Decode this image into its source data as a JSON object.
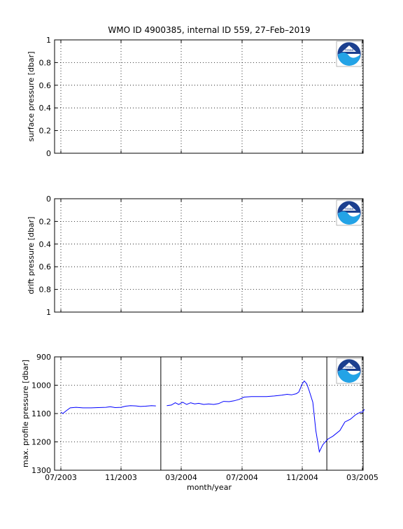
{
  "title": "WMO ID 4900385, internal ID 559, 27–Feb–2019",
  "xlabel": "month/year",
  "noaa_logo": {
    "text": "noaa",
    "ring_color": "#1b3f8f",
    "wave_color": "#23a3e6"
  },
  "chart_data": [
    {
      "type": "line",
      "ylabel": "surface pressure [dbar]",
      "ylim": [
        0,
        1
      ],
      "y_reversed": false,
      "yticks": [
        0,
        0.2,
        0.4,
        0.6,
        0.8,
        1
      ],
      "ytick_labels": [
        "0",
        "0.2",
        "0.4",
        "0.6",
        "0.8",
        "1"
      ],
      "grid": true,
      "x_ticks": [
        "07/2003",
        "11/2003",
        "03/2004",
        "07/2004",
        "11/2004",
        "03/2005"
      ],
      "series": [],
      "vlines": []
    },
    {
      "type": "line",
      "ylabel": "drift pressure [dbar]",
      "ylim": [
        0,
        1
      ],
      "y_reversed": true,
      "yticks": [
        0,
        0.2,
        0.4,
        0.6,
        0.8,
        1
      ],
      "ytick_labels": [
        "0",
        "0.2",
        "0.4",
        "0.6",
        "0.8",
        "1"
      ],
      "grid": true,
      "x_ticks": [
        "07/2003",
        "11/2003",
        "03/2004",
        "07/2004",
        "11/2004",
        "03/2005"
      ],
      "series": [],
      "vlines": []
    },
    {
      "type": "line",
      "ylabel": "max. profile pressure [dbar]",
      "ylim": [
        900,
        1300
      ],
      "y_reversed": true,
      "yticks": [
        900,
        1000,
        1100,
        1200,
        1300
      ],
      "ytick_labels": [
        "900",
        "1000",
        "1100",
        "1200",
        "1300"
      ],
      "grid": true,
      "x_ticks": [
        "07/2003",
        "11/2003",
        "03/2004",
        "07/2004",
        "11/2004",
        "03/2005"
      ],
      "line_color": "#0000ff",
      "vlines": [
        "2004-01-20",
        "2004-12-20"
      ],
      "series": [
        {
          "points": [
            [
              "2003-07-01",
              1095
            ],
            [
              "2003-07-05",
              1100
            ],
            [
              "2003-07-12",
              1090
            ],
            [
              "2003-07-20",
              1080
            ],
            [
              "2003-08-01",
              1078
            ],
            [
              "2003-08-15",
              1080
            ],
            [
              "2003-09-01",
              1080
            ],
            [
              "2003-09-15",
              1079
            ],
            [
              "2003-10-01",
              1078
            ],
            [
              "2003-10-10",
              1076
            ],
            [
              "2003-10-20",
              1079
            ],
            [
              "2003-11-01",
              1078
            ],
            [
              "2003-11-10",
              1074
            ],
            [
              "2003-11-20",
              1072
            ],
            [
              "2003-12-01",
              1073
            ],
            [
              "2003-12-10",
              1075
            ],
            [
              "2003-12-20",
              1074
            ],
            [
              "2004-01-01",
              1072
            ],
            [
              "2004-01-10",
              1073
            ]
          ]
        },
        {
          "points": [
            [
              "2004-02-01",
              1072
            ],
            [
              "2004-02-10",
              1070
            ],
            [
              "2004-02-18",
              1062
            ],
            [
              "2004-02-25",
              1068
            ],
            [
              "2004-03-04",
              1060
            ],
            [
              "2004-03-12",
              1068
            ],
            [
              "2004-03-20",
              1062
            ],
            [
              "2004-03-28",
              1066
            ],
            [
              "2004-04-05",
              1064
            ],
            [
              "2004-04-15",
              1068
            ],
            [
              "2004-04-25",
              1066
            ],
            [
              "2004-05-05",
              1068
            ],
            [
              "2004-05-15",
              1065
            ],
            [
              "2004-05-25",
              1057
            ],
            [
              "2004-06-05",
              1058
            ],
            [
              "2004-06-15",
              1055
            ],
            [
              "2004-06-25",
              1050
            ],
            [
              "2004-07-05",
              1042
            ],
            [
              "2004-07-20",
              1040
            ],
            [
              "2004-08-05",
              1040
            ],
            [
              "2004-08-20",
              1040
            ],
            [
              "2004-09-05",
              1038
            ],
            [
              "2004-09-20",
              1035
            ],
            [
              "2004-10-01",
              1032
            ],
            [
              "2004-10-10",
              1034
            ],
            [
              "2004-10-20",
              1030
            ],
            [
              "2004-10-25",
              1024
            ],
            [
              "2004-11-01",
              995
            ],
            [
              "2004-11-05",
              985
            ],
            [
              "2004-11-10",
              995
            ],
            [
              "2004-11-15",
              1020
            ],
            [
              "2004-11-22",
              1060
            ],
            [
              "2004-11-28",
              1160
            ],
            [
              "2004-12-05",
              1235
            ],
            [
              "2004-12-12",
              1210
            ],
            [
              "2004-12-22",
              1190
            ],
            [
              "2005-01-01",
              1180
            ],
            [
              "2005-01-15",
              1160
            ],
            [
              "2005-01-25",
              1130
            ],
            [
              "2005-02-05",
              1120
            ],
            [
              "2005-02-15",
              1105
            ],
            [
              "2005-02-25",
              1095
            ],
            [
              "2005-03-01",
              1095
            ],
            [
              "2005-03-05",
              1085
            ]
          ]
        }
      ]
    }
  ]
}
